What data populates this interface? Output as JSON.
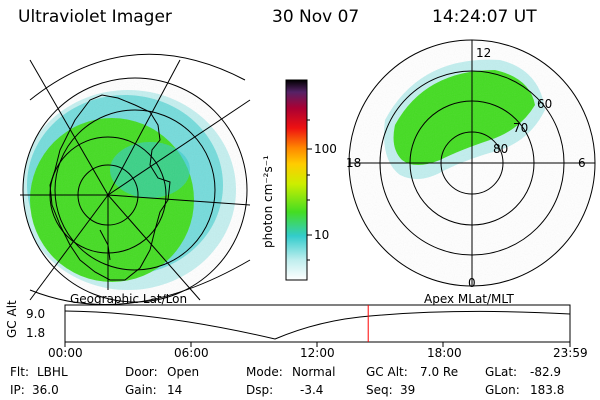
{
  "header": {
    "instrument": "Ultraviolet Imager",
    "date": "30 Nov 07",
    "time": "14:24:07 UT"
  },
  "colorbar": {
    "unit_label": "photon cm⁻²s⁻¹",
    "ticks": [
      "100",
      "10"
    ]
  },
  "polar_plot": {
    "mlt_labels": {
      "top": "12",
      "left": "18",
      "right": "6",
      "bottom": "0"
    },
    "mlat_labels": [
      "60",
      "70",
      "80"
    ]
  },
  "panel_labels": {
    "left": "Geographic Lat/Lon",
    "right": "Apex MLat/MLT"
  },
  "altitude_plot": {
    "axis_label": "GC Alt",
    "y_ticks": [
      "9.0",
      "1.8"
    ],
    "x_ticks": [
      "00:00",
      "06:00",
      "12:00",
      "18:00",
      "23:59"
    ],
    "current_time_marker_hour": 14.4
  },
  "status": {
    "flt_label": "Flt:",
    "flt_value": "LBHL",
    "ip_label": "IP:",
    "ip_value": "36.0",
    "door_label": "Door:",
    "door_value": "Open",
    "gain_label": "Gain:",
    "gain_value": "14",
    "mode_label": "Mode:",
    "mode_value": "Normal",
    "dsp_label": "Dsp:",
    "dsp_value": "-3.4",
    "gcalt_label": "GC Alt:",
    "gcalt_value": "7.0 Re",
    "seq_label": "Seq:",
    "seq_value": "39",
    "glat_label": "GLat:",
    "glat_value": "-82.9",
    "glon_label": "GLon:",
    "glon_value": "183.8"
  },
  "colors": {
    "aurora_green": "#44dd22",
    "aurora_cyan": "#33cccc",
    "marker_red": "#ff0000"
  }
}
